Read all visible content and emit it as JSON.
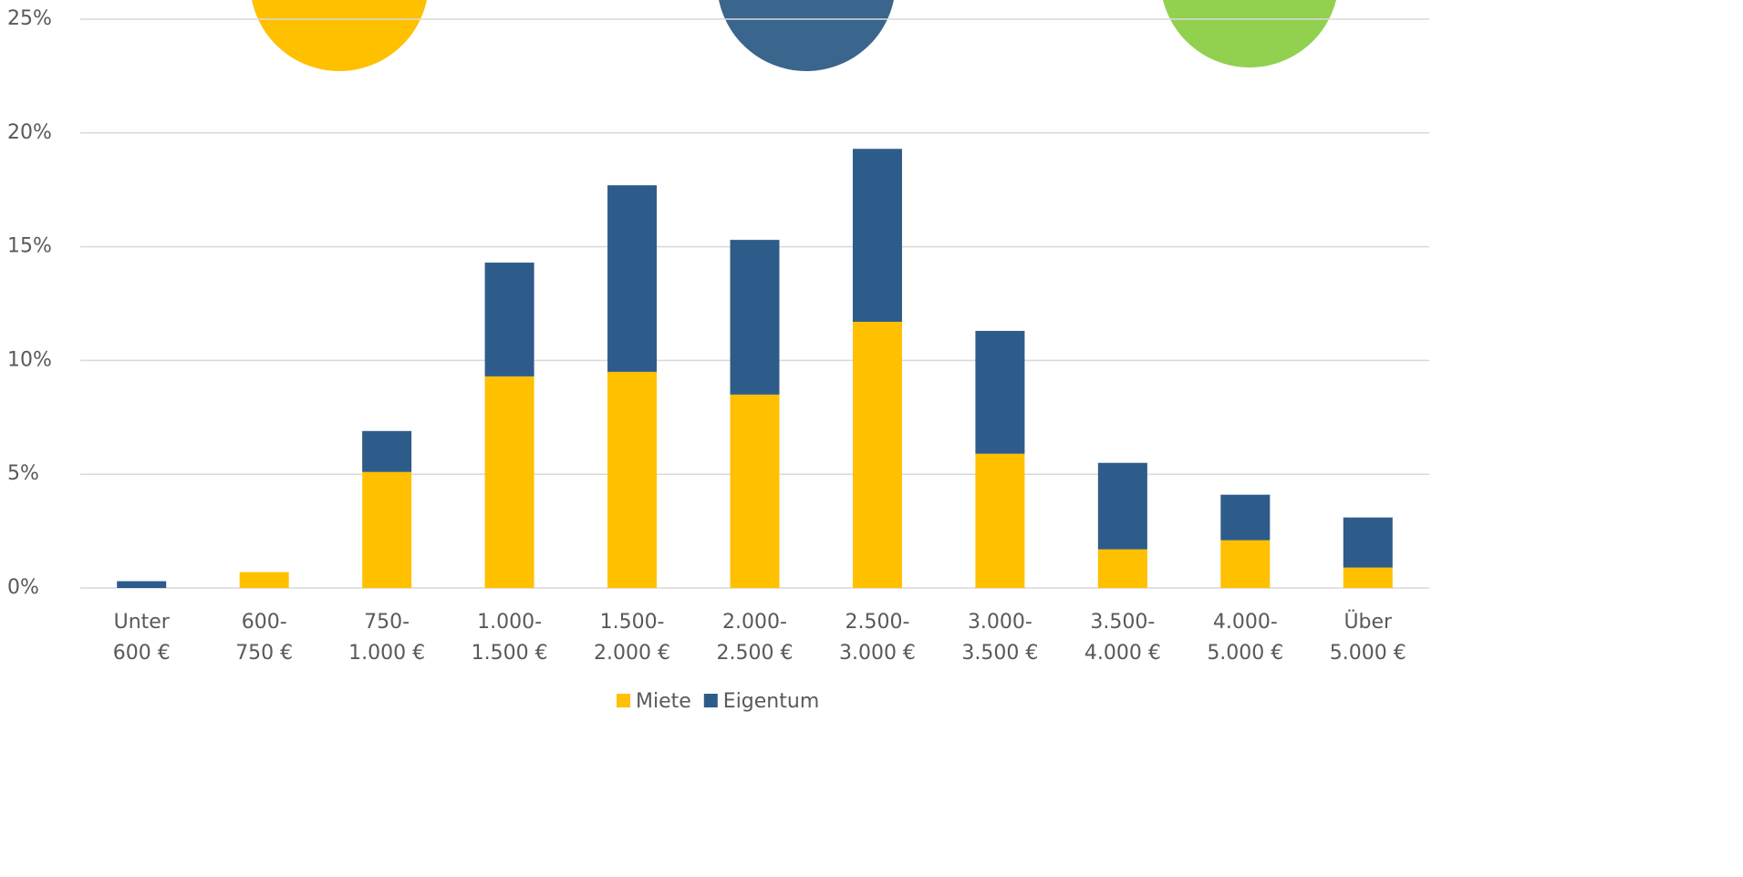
{
  "chart_data": {
    "type": "stacked_bar",
    "categories": [
      [
        "Unter",
        "600 €"
      ],
      [
        "600-",
        "750 €"
      ],
      [
        "750-",
        "1.000 €"
      ],
      [
        "1.000-",
        "1.500 €"
      ],
      [
        "1.500-",
        "2.000 €"
      ],
      [
        "2.000-",
        "2.500 €"
      ],
      [
        "2.500-",
        "3.000 €"
      ],
      [
        "3.000-",
        "3.500 €"
      ],
      [
        "3.500-",
        "4.000 €"
      ],
      [
        "4.000-",
        "5.000 €"
      ],
      [
        "Über",
        "5.000 €"
      ]
    ],
    "series": [
      {
        "name": "Miete",
        "color": "#ffc000",
        "values": [
          0,
          0.7,
          5.1,
          9.3,
          9.5,
          8.5,
          11.7,
          5.9,
          1.7,
          2.1,
          0.9
        ]
      },
      {
        "name": "Eigentum",
        "color": "#2e5c8a",
        "values": [
          0.3,
          0,
          1.8,
          5.0,
          8.2,
          6.8,
          7.6,
          5.4,
          3.8,
          2.0,
          2.2
        ]
      }
    ],
    "ylim": [
      0,
      25
    ],
    "yticks": [
      {
        "value": 0,
        "label": "0%"
      },
      {
        "value": 5,
        "label": "5%"
      },
      {
        "value": 10,
        "label": "10%"
      },
      {
        "value": 15,
        "label": "15%"
      },
      {
        "value": 20,
        "label": "20%"
      },
      {
        "value": 25,
        "label": "25%"
      }
    ],
    "grid": true,
    "legend": "bottom"
  }
}
